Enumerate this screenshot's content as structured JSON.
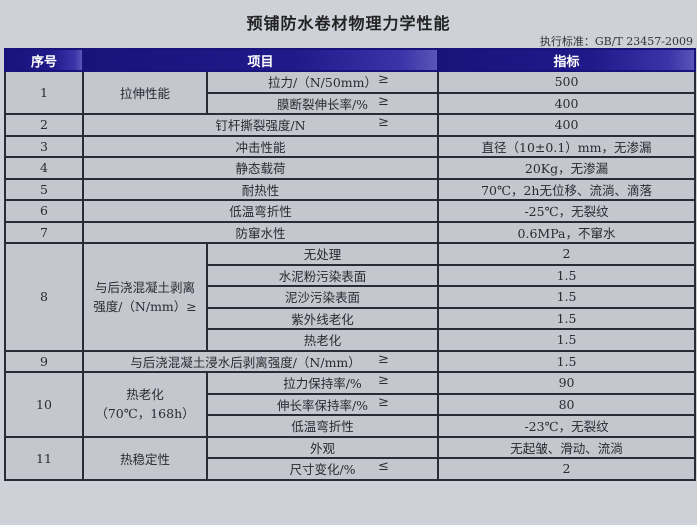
{
  "title": "预铺防水卷材物理力学性能",
  "standard": "执行标准：GB/T 23457-2009",
  "header": {
    "no": "序号",
    "item": "项目",
    "index": "指标"
  },
  "ge": "≥",
  "le": "≤",
  "rows": {
    "r1": {
      "no": "1",
      "group": "拉伸性能",
      "a": {
        "item": "拉力/（N/50mm）",
        "value": "500"
      },
      "b": {
        "item": "膜断裂伸长率/%",
        "value": "400"
      }
    },
    "r2": {
      "no": "2",
      "item": "钉杆撕裂强度/N",
      "value": "400"
    },
    "r3": {
      "no": "3",
      "item": "冲击性能",
      "value": "直径（10±0.1）mm，无渗漏"
    },
    "r4": {
      "no": "4",
      "item": "静态载荷",
      "value": "20Kg，无渗漏"
    },
    "r5": {
      "no": "5",
      "item": "耐热性",
      "value": "70℃，2h无位移、流淌、滴落"
    },
    "r6": {
      "no": "6",
      "item": "低温弯折性",
      "value": "-25℃，无裂纹"
    },
    "r7": {
      "no": "7",
      "item": "防窜水性",
      "value": "0.6MPa，不窜水"
    },
    "r8": {
      "no": "8",
      "group_line1": "与后浇混凝土剥离",
      "group_line2": "强度/（N/mm）≥",
      "subs": [
        {
          "item": "无处理",
          "value": "2"
        },
        {
          "item": "水泥粉污染表面",
          "value": "1.5"
        },
        {
          "item": "泥沙污染表面",
          "value": "1.5"
        },
        {
          "item": "紫外线老化",
          "value": "1.5"
        },
        {
          "item": "热老化",
          "value": "1.5"
        }
      ]
    },
    "r9": {
      "no": "9",
      "item": "与后浇混凝土浸水后剥离强度/（N/mm）",
      "value": "1.5"
    },
    "r10": {
      "no": "10",
      "group_line1": "热老化",
      "group_line2": "（70℃，168h）",
      "subs": [
        {
          "item": "拉力保持率/%",
          "value": "90"
        },
        {
          "item": "伸长率保持率/%",
          "value": "80"
        },
        {
          "item": "低温弯折性",
          "value": "-23℃，无裂纹"
        }
      ]
    },
    "r11": {
      "no": "11",
      "group": "热稳定性",
      "subs": [
        {
          "item": "外观",
          "value": "无起皱、滑动、流淌"
        },
        {
          "item": "尺寸变化/%",
          "value": "2"
        }
      ]
    }
  }
}
